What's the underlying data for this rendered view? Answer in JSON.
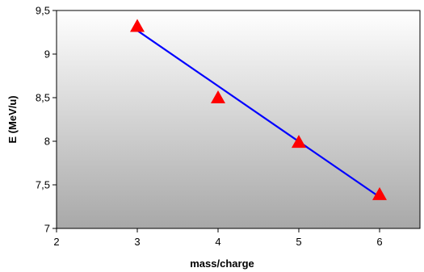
{
  "chart_data": {
    "type": "scatter",
    "title": "",
    "xlabel": "mass/charge",
    "ylabel": "E (MeV/u)",
    "xlim": [
      2,
      6.5
    ],
    "ylim": [
      7,
      9.5
    ],
    "x_ticks": [
      2,
      3,
      4,
      5,
      6
    ],
    "x_tick_labels": [
      "2",
      "3",
      "4",
      "5",
      "6"
    ],
    "y_ticks": [
      7,
      7.5,
      8,
      8.5,
      9,
      9.5
    ],
    "y_tick_labels": [
      "7",
      "7,5",
      "8",
      "8,5",
      "9",
      "9,5"
    ],
    "grid": false,
    "legend": "none",
    "series": [
      {
        "marker": "triangle",
        "color": "#ff0000",
        "points": [
          {
            "x": 3,
            "y": 9.32
          },
          {
            "x": 4,
            "y": 8.5
          },
          {
            "x": 5,
            "y": 7.99
          },
          {
            "x": 6,
            "y": 7.39
          }
        ]
      }
    ],
    "fit_line": {
      "color": "#0000ff",
      "from": {
        "x": 3,
        "y": 9.27
      },
      "to": {
        "x": 6,
        "y": 7.36
      }
    },
    "plot_background": {
      "from": "#ffffff",
      "to": "#a8a8a8"
    }
  }
}
